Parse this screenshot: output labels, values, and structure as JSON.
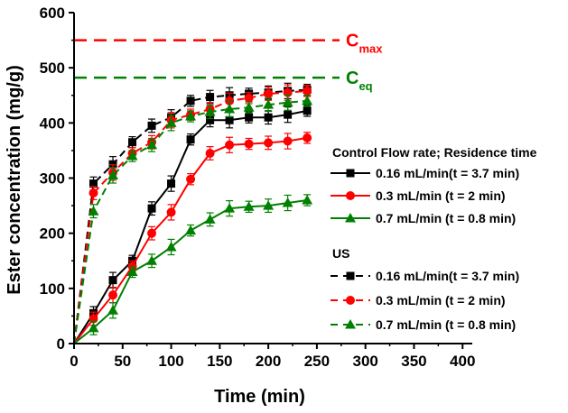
{
  "chart_data": {
    "type": "line",
    "xlabel": "Time (min)",
    "ylabel": "Ester concentration (mg/g)",
    "xlim": [
      0,
      410
    ],
    "ylim": [
      0,
      600
    ],
    "xticks": [
      0,
      50,
      100,
      150,
      200,
      250,
      300,
      350,
      400
    ],
    "yticks": [
      0,
      100,
      200,
      300,
      400,
      500,
      600
    ],
    "x": [
      0,
      20,
      40,
      60,
      80,
      100,
      120,
      140,
      160,
      180,
      200,
      220,
      240
    ],
    "reference_lines": [
      {
        "name": "Cmax",
        "main": "C",
        "sub": "max",
        "value": 550,
        "color": "#ff0000"
      },
      {
        "name": "Ceq",
        "main": "C",
        "sub": "eq",
        "value": 482,
        "color": "#008000"
      }
    ],
    "legend": {
      "control_header": "Control  Flow rate; Residence time",
      "us_header": "US"
    },
    "series": [
      {
        "name": "0.16 mL/min(t = 3.7 min)",
        "group": "Control",
        "color": "#000000",
        "marker": "square",
        "dash": false,
        "values": [
          0,
          55,
          115,
          150,
          245,
          290,
          370,
          405,
          405,
          410,
          410,
          415,
          422
        ]
      },
      {
        "name": "0.3 mL/min  (t = 2 min)",
        "group": "Control",
        "color": "#ff0000",
        "marker": "circle",
        "dash": false,
        "values": [
          0,
          45,
          88,
          140,
          200,
          238,
          298,
          345,
          360,
          362,
          364,
          367,
          373
        ]
      },
      {
        "name": "0.7 mL/min   (t = 0.8 min)",
        "group": "Control",
        "color": "#008000",
        "marker": "triangle",
        "dash": false,
        "values": [
          0,
          28,
          60,
          130,
          150,
          175,
          205,
          225,
          245,
          248,
          250,
          255,
          260
        ]
      },
      {
        "name": "0.16 mL/min(t = 3.7 min)",
        "group": "US",
        "color": "#000000",
        "marker": "square",
        "dash": true,
        "values": [
          0,
          290,
          325,
          365,
          395,
          410,
          440,
          447,
          450,
          453,
          455,
          458,
          460
        ]
      },
      {
        "name": "0.3 mL/min  (t = 2 min)",
        "group": "US",
        "color": "#ff0000",
        "marker": "circle",
        "dash": true,
        "values": [
          0,
          273,
          310,
          345,
          365,
          405,
          415,
          425,
          440,
          445,
          453,
          455,
          458
        ]
      },
      {
        "name": "0.7 mL/min   (t = 0.8 min)",
        "group": "US",
        "color": "#008000",
        "marker": "triangle",
        "dash": true,
        "values": [
          0,
          240,
          305,
          340,
          360,
          400,
          412,
          420,
          425,
          428,
          433,
          437,
          440
        ]
      }
    ]
  }
}
